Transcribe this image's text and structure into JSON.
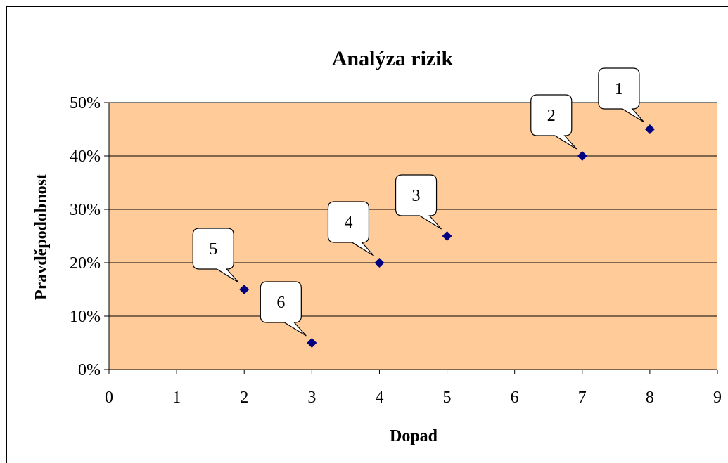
{
  "colors": {
    "plot_area": "#FFCC99",
    "marker": "#000080",
    "gridline": "#000000",
    "callout_fill": "#FFFFFF",
    "callout_stroke": "#000000"
  },
  "chart_data": {
    "type": "scatter",
    "title": "Analýza rizik",
    "xlabel": "Dopad",
    "ylabel": "Pravděpodobnost",
    "xlim": [
      0,
      9
    ],
    "ylim": [
      0,
      0.5
    ],
    "x_ticks": [
      "0",
      "1",
      "2",
      "3",
      "4",
      "5",
      "6",
      "7",
      "8",
      "9"
    ],
    "y_ticks": [
      "0%",
      "10%",
      "20%",
      "30%",
      "40%",
      "50%"
    ],
    "grid": true,
    "legend": "none",
    "marker": "diamond",
    "points": [
      {
        "label": "1",
        "x": 8,
        "y": 0.45
      },
      {
        "label": "2",
        "x": 7,
        "y": 0.4
      },
      {
        "label": "3",
        "x": 5,
        "y": 0.25
      },
      {
        "label": "4",
        "x": 4,
        "y": 0.2
      },
      {
        "label": "5",
        "x": 2,
        "y": 0.15
      },
      {
        "label": "6",
        "x": 3,
        "y": 0.05
      }
    ]
  }
}
